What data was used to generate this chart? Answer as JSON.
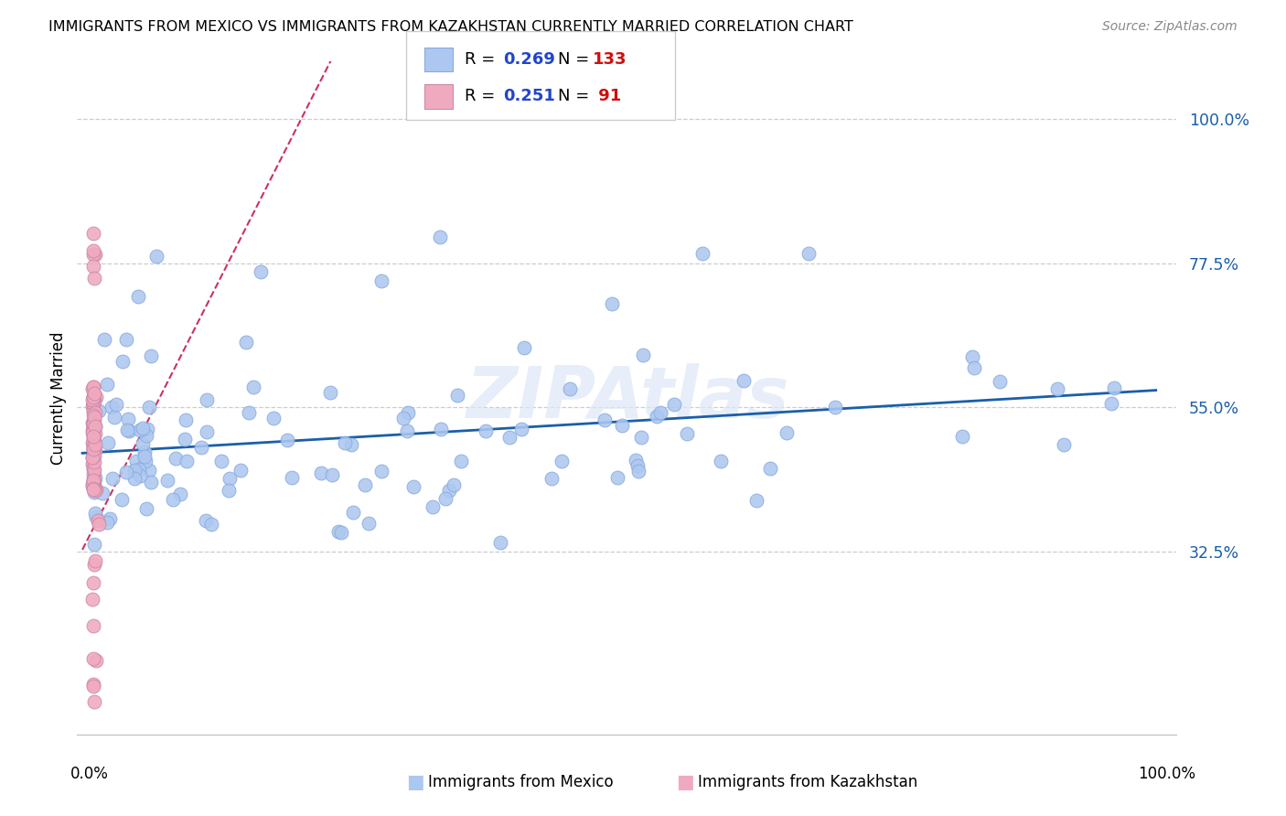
{
  "title": "IMMIGRANTS FROM MEXICO VS IMMIGRANTS FROM KAZAKHSTAN CURRENTLY MARRIED CORRELATION CHART",
  "source": "Source: ZipAtlas.com",
  "ylabel": "Currently Married",
  "yticks": [
    0.325,
    0.55,
    0.775,
    1.0
  ],
  "ytick_labels": [
    "32.5%",
    "55.0%",
    "77.5%",
    "100.0%"
  ],
  "xlim": [
    -0.015,
    1.04
  ],
  "ylim": [
    0.04,
    1.09
  ],
  "mexico_R": 0.269,
  "mexico_N": 133,
  "kazakhstan_R": 0.251,
  "kazakhstan_N": 91,
  "mexico_color": "#adc8f0",
  "mexico_edge_color": "#88aadd",
  "mexico_line_color": "#1a5faa",
  "kazakhstan_color": "#f0aac0",
  "kazakhstan_edge_color": "#cc88a8",
  "kazakhstan_line_color": "#cc3060",
  "legend_color": "#2244cc",
  "legend_N_color": "#cc1010",
  "background_color": "#ffffff",
  "grid_color": "#cccccc",
  "watermark_text": "ZIPAtlas",
  "bottom_legend_left": "Immigrants from Mexico",
  "bottom_legend_right": "Immigrants from Kazakhstan"
}
